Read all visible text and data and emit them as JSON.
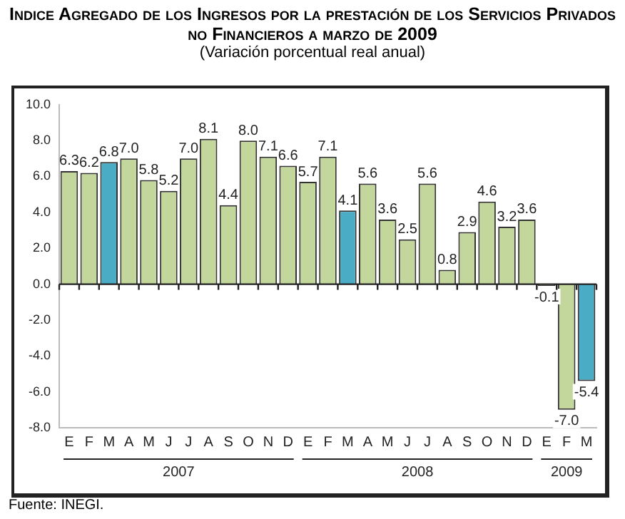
{
  "chart_data": {
    "type": "bar",
    "title": "Indice Agregado de los Ingresos por la prestación de los Servicios Privados no Financieros a marzo de 2009",
    "subtitle": "(Variación porcentual real anual)",
    "categories": [
      "E",
      "F",
      "M",
      "A",
      "M",
      "J",
      "J",
      "A",
      "S",
      "O",
      "N",
      "D",
      "E",
      "F",
      "M",
      "A",
      "M",
      "J",
      "J",
      "A",
      "S",
      "O",
      "N",
      "D",
      "E",
      "F",
      "M"
    ],
    "values": [
      6.3,
      6.2,
      6.8,
      7.0,
      5.8,
      5.2,
      7.0,
      8.1,
      4.4,
      8.0,
      7.1,
      6.6,
      5.7,
      7.1,
      4.1,
      5.6,
      3.6,
      2.5,
      5.6,
      0.8,
      2.9,
      4.6,
      3.2,
      3.6,
      -0.1,
      -7.0,
      -5.4
    ],
    "value_labels": [
      "6.3",
      "6.2",
      "6.8",
      "7.0",
      "5.8",
      "5.2",
      "7.0",
      "8.1",
      "4.4",
      "8.0",
      "7.1",
      "6.6",
      "5.7",
      "7.1",
      "4.1",
      "5.6",
      "3.6",
      "2.5",
      "5.6",
      "0.8",
      "2.9",
      "4.6",
      "3.2",
      "3.6",
      "-0.1",
      "-7.0",
      "-5.4"
    ],
    "colors": [
      "#c3d69b",
      "#c3d69b",
      "#4bacc6",
      "#c3d69b",
      "#c3d69b",
      "#c3d69b",
      "#c3d69b",
      "#c3d69b",
      "#c3d69b",
      "#c3d69b",
      "#c3d69b",
      "#c3d69b",
      "#c3d69b",
      "#c3d69b",
      "#4bacc6",
      "#c3d69b",
      "#c3d69b",
      "#c3d69b",
      "#c3d69b",
      "#c3d69b",
      "#c3d69b",
      "#c3d69b",
      "#c3d69b",
      "#c3d69b",
      "#c3d69b",
      "#c3d69b",
      "#4bacc6"
    ],
    "ylim": [
      -8,
      10
    ],
    "yticks": [
      {
        "value": -8,
        "label": "-8.0"
      },
      {
        "value": -6,
        "label": "-6.0"
      },
      {
        "value": -4,
        "label": "-4.0"
      },
      {
        "value": -2,
        "label": "-2.0"
      },
      {
        "value": 0,
        "label": "0.0"
      },
      {
        "value": 2,
        "label": "2.0"
      },
      {
        "value": 4,
        "label": "4.0"
      },
      {
        "value": 6,
        "label": "6.0"
      },
      {
        "value": 8,
        "label": "8.0"
      },
      {
        "value": 10,
        "label": "10.0"
      }
    ],
    "annotations": [
      "2007",
      "2008",
      "2009",
      "Fuente: INEGI."
    ],
    "ref_lines": [
      {
        "axis": "y",
        "value": 0,
        "color": "#222222"
      }
    ],
    "grid": false,
    "legend": false
  }
}
